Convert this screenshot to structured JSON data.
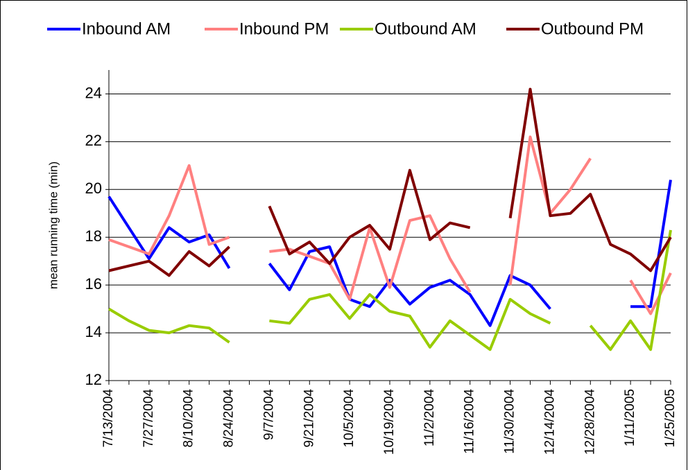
{
  "chart_data": {
    "type": "line",
    "ylabel": "mean running time (min)",
    "categories": [
      "7/13/2004",
      null,
      "7/27/2004",
      null,
      "8/10/2004",
      null,
      "8/24/2004",
      null,
      "9/7/2004",
      null,
      "9/21/2004",
      null,
      "10/5/2004",
      null,
      "10/19/2004",
      null,
      "11/2/2004",
      null,
      "11/16/2004",
      null,
      "11/30/2004",
      null,
      "12/14/2004",
      null,
      "12/28/2004",
      null,
      "1/11/2005",
      null,
      "1/25/2005"
    ],
    "series": [
      {
        "name": "Inbound AM",
        "color": "#0000ff",
        "values": [
          19.7,
          18.4,
          17.1,
          18.4,
          17.8,
          18.1,
          16.7,
          null,
          16.9,
          15.8,
          17.4,
          17.6,
          15.4,
          15.1,
          16.2,
          15.2,
          15.9,
          16.2,
          15.6,
          14.3,
          16.4,
          16.0,
          15.0,
          null,
          null,
          null,
          15.1,
          15.1,
          20.4
        ]
      },
      {
        "name": "Inbound PM",
        "color": "#ff8080",
        "values": [
          17.9,
          17.6,
          17.3,
          18.9,
          21.0,
          17.7,
          18.0,
          null,
          17.4,
          17.5,
          17.2,
          16.9,
          15.4,
          18.4,
          15.9,
          18.7,
          18.9,
          17.1,
          15.7,
          null,
          16.0,
          22.2,
          19.0,
          20.0,
          21.3,
          null,
          16.2,
          14.8,
          16.5
        ]
      },
      {
        "name": "Outbound AM",
        "color": "#99cc00",
        "values": [
          15.0,
          14.5,
          14.1,
          14.0,
          14.3,
          14.2,
          13.6,
          null,
          14.5,
          14.4,
          15.4,
          15.6,
          14.6,
          15.6,
          14.9,
          14.7,
          13.4,
          14.5,
          13.9,
          13.3,
          15.4,
          14.8,
          14.4,
          null,
          14.3,
          13.3,
          14.5,
          13.3,
          18.3
        ]
      },
      {
        "name": "Outbound PM",
        "color": "#800000",
        "values": [
          16.6,
          16.8,
          17.0,
          16.4,
          17.4,
          16.8,
          17.6,
          null,
          19.3,
          17.3,
          17.8,
          16.9,
          18.0,
          18.5,
          17.5,
          20.8,
          17.9,
          18.6,
          18.4,
          null,
          18.8,
          24.2,
          18.9,
          19.0,
          19.8,
          17.7,
          17.3,
          16.6,
          18.0
        ]
      }
    ],
    "ylim": [
      12,
      25
    ],
    "yticks": [
      12,
      14,
      16,
      18,
      20,
      22,
      24
    ],
    "grid": true,
    "legend": "top"
  }
}
